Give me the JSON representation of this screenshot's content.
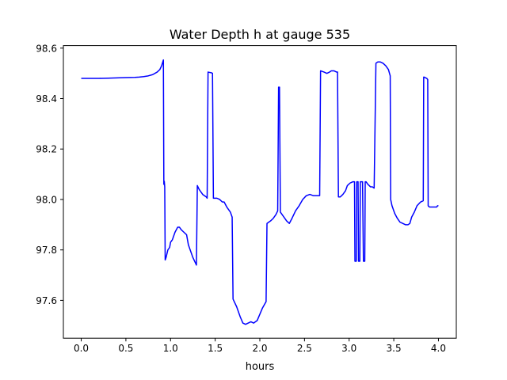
{
  "chart_data": {
    "type": "line",
    "title": "Water Depth h at gauge 535",
    "xlabel": "hours",
    "ylabel": "",
    "xlim": [
      -0.2,
      4.2
    ],
    "ylim": [
      97.45,
      98.61
    ],
    "xticks": [
      0.0,
      0.5,
      1.0,
      1.5,
      2.0,
      2.5,
      3.0,
      3.5,
      4.0
    ],
    "xtick_labels": [
      "0.0",
      "0.5",
      "1.0",
      "1.5",
      "2.0",
      "2.5",
      "3.0",
      "3.5",
      "4.0"
    ],
    "yticks": [
      97.6,
      97.8,
      98.0,
      98.2,
      98.4,
      98.6
    ],
    "ytick_labels": [
      "97.6",
      "97.8",
      "98.0",
      "98.2",
      "98.4",
      "98.6"
    ],
    "grid": false,
    "series": [
      {
        "color": "#0000ff",
        "x": [
          0.0,
          0.1,
          0.2,
          0.3,
          0.4,
          0.5,
          0.6,
          0.65,
          0.7,
          0.75,
          0.8,
          0.85,
          0.88,
          0.9,
          0.92,
          0.925,
          0.93,
          0.935,
          0.94,
          0.95,
          0.97,
          0.99,
          1.0,
          1.02,
          1.05,
          1.08,
          1.1,
          1.12,
          1.15,
          1.18,
          1.2,
          1.25,
          1.29,
          1.3,
          1.32,
          1.36,
          1.4,
          1.41,
          1.42,
          1.46,
          1.47,
          1.48,
          1.52,
          1.55,
          1.58,
          1.6,
          1.63,
          1.67,
          1.69,
          1.7,
          1.74,
          1.78,
          1.81,
          1.84,
          1.87,
          1.9,
          1.93,
          1.97,
          2.0,
          2.03,
          2.07,
          2.08,
          2.12,
          2.15,
          2.18,
          2.2,
          2.21,
          2.22,
          2.23,
          2.26,
          2.3,
          2.33,
          2.36,
          2.4,
          2.44,
          2.48,
          2.52,
          2.56,
          2.6,
          2.64,
          2.67,
          2.68,
          2.72,
          2.75,
          2.78,
          2.8,
          2.83,
          2.86,
          2.87,
          2.88,
          2.9,
          2.93,
          2.96,
          2.98,
          3.01,
          3.04,
          3.06,
          3.065,
          3.08,
          3.085,
          3.1,
          3.105,
          3.12,
          3.125,
          3.15,
          3.16,
          3.175,
          3.18,
          3.19,
          3.21,
          3.24,
          3.26,
          3.28,
          3.3,
          3.32,
          3.35,
          3.38,
          3.41,
          3.44,
          3.46,
          3.465,
          3.48,
          3.51,
          3.54,
          3.57,
          3.6,
          3.63,
          3.66,
          3.68,
          3.7,
          3.73,
          3.76,
          3.8,
          3.83,
          3.835,
          3.84,
          3.87,
          3.88,
          3.885,
          3.9,
          3.94,
          3.98,
          3.99,
          4.0
        ],
        "y": [
          98.48,
          98.48,
          98.48,
          98.481,
          98.482,
          98.483,
          98.484,
          98.485,
          98.487,
          98.49,
          98.495,
          98.505,
          98.515,
          98.53,
          98.553,
          98.06,
          98.072,
          98.05,
          97.76,
          97.77,
          97.8,
          97.81,
          97.83,
          97.84,
          97.87,
          97.89,
          97.89,
          97.88,
          97.87,
          97.86,
          97.82,
          97.77,
          97.74,
          98.055,
          98.04,
          98.02,
          98.01,
          98.005,
          98.505,
          98.502,
          98.5,
          98.005,
          98.005,
          98.0,
          97.99,
          97.99,
          97.97,
          97.95,
          97.93,
          97.605,
          97.575,
          97.535,
          97.51,
          97.505,
          97.51,
          97.515,
          97.51,
          97.52,
          97.545,
          97.57,
          97.595,
          97.905,
          97.915,
          97.925,
          97.94,
          97.955,
          98.445,
          98.445,
          97.95,
          97.935,
          97.915,
          97.905,
          97.925,
          97.955,
          97.975,
          98.0,
          98.015,
          98.02,
          98.015,
          98.015,
          98.015,
          98.51,
          98.505,
          98.5,
          98.505,
          98.51,
          98.51,
          98.505,
          98.505,
          98.01,
          98.01,
          98.02,
          98.035,
          98.055,
          98.065,
          98.07,
          98.07,
          97.755,
          97.755,
          98.07,
          98.07,
          97.755,
          97.755,
          98.07,
          98.07,
          97.755,
          97.755,
          98.07,
          98.07,
          98.06,
          98.05,
          98.05,
          98.045,
          98.54,
          98.545,
          98.545,
          98.54,
          98.53,
          98.515,
          98.49,
          98.0,
          97.975,
          97.945,
          97.925,
          97.91,
          97.905,
          97.9,
          97.9,
          97.905,
          97.93,
          97.95,
          97.975,
          97.99,
          97.995,
          98.485,
          98.485,
          98.48,
          98.475,
          97.975,
          97.97,
          97.97,
          97.97,
          97.975,
          97.975
        ]
      }
    ]
  }
}
